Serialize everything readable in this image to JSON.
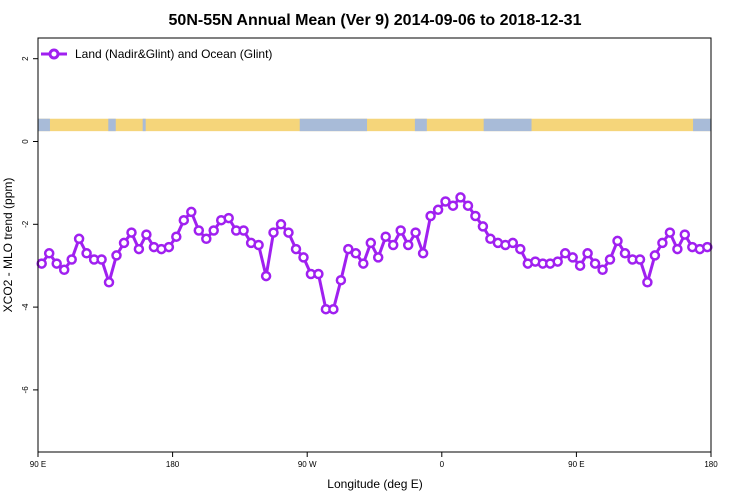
{
  "chart_data": {
    "type": "line",
    "title": "50N-55N Annual Mean (Ver 9)   2014-09-06 to 2018-12-31",
    "xlabel": "Longitude (deg E)",
    "ylabel": "XCO2 - MLO trend (ppm)",
    "xlim": [
      90,
      540
    ],
    "ylim": [
      -7.5,
      2.5
    ],
    "x_ticks": [
      {
        "value": 90,
        "label": "90 E"
      },
      {
        "value": 180,
        "label": "180"
      },
      {
        "value": 270,
        "label": "90 W"
      },
      {
        "value": 360,
        "label": "0"
      },
      {
        "value": 450,
        "label": "90 E"
      },
      {
        "value": 540,
        "label": "180"
      }
    ],
    "y_ticks": [
      {
        "value": 2,
        "label": "2"
      },
      {
        "value": 0,
        "label": "0"
      },
      {
        "value": -2,
        "label": "-2"
      },
      {
        "value": -4,
        "label": "-4"
      },
      {
        "value": -6,
        "label": "-6"
      }
    ],
    "grid": false,
    "legend_position": "top-left",
    "series": [
      {
        "name": "Land (Nadir&Glint) and Ocean (Glint)",
        "color": "#a020f0",
        "x": [
          92.5,
          97.5,
          102.5,
          107.5,
          112.5,
          117.5,
          122.5,
          127.5,
          132.5,
          137.5,
          142.5,
          147.5,
          152.5,
          157.5,
          162.5,
          167.5,
          172.5,
          177.5,
          182.5,
          187.5,
          192.5,
          197.5,
          202.5,
          207.5,
          212.5,
          217.5,
          222.5,
          227.5,
          232.5,
          237.5,
          242.5,
          247.5,
          252.5,
          257.5,
          262.5,
          267.5,
          272.5,
          277.5,
          282.5,
          287.5,
          292.5,
          297.5,
          302.5,
          307.5,
          312.5,
          317.5,
          322.5,
          327.5,
          332.5,
          337.5,
          342.5,
          347.5,
          352.5,
          357.5,
          362.5,
          367.5,
          372.5,
          377.5,
          382.5,
          387.5,
          392.5,
          397.5,
          402.5,
          407.5,
          412.5,
          417.5,
          422.5,
          427.5,
          432.5,
          437.5,
          442.5,
          447.5,
          452.5,
          457.5,
          462.5,
          467.5,
          472.5,
          477.5,
          482.5,
          487.5,
          492.5,
          497.5,
          502.5,
          507.5,
          512.5,
          517.5,
          522.5,
          527.5,
          532.5,
          537.5
        ],
        "values": [
          -2.95,
          -2.7,
          -2.95,
          -3.1,
          -2.85,
          -2.35,
          -2.7,
          -2.85,
          -2.85,
          -3.4,
          -2.75,
          -2.45,
          -2.2,
          -2.6,
          -2.25,
          -2.55,
          -2.6,
          -2.55,
          -2.3,
          -1.9,
          -1.7,
          -2.15,
          -2.35,
          -2.15,
          -1.9,
          -1.85,
          -2.15,
          -2.15,
          -2.45,
          -2.5,
          -3.25,
          -2.2,
          -2.0,
          -2.2,
          -2.6,
          -2.8,
          -3.2,
          -3.2,
          -4.05,
          -4.05,
          -3.35,
          -2.6,
          -2.7,
          -2.95,
          -2.45,
          -2.8,
          -2.3,
          -2.5,
          -2.15,
          -2.5,
          -2.2,
          -2.7,
          -1.8,
          -1.65,
          -1.45,
          -1.55,
          -1.35,
          -1.55,
          -1.8,
          -2.05,
          -2.35,
          -2.45,
          -2.5,
          -2.45,
          -2.6,
          -2.95,
          -2.9,
          -2.95,
          -2.95,
          -2.9,
          -2.7,
          -2.8,
          -3.0,
          -2.7,
          -2.95,
          -3.1,
          -2.85,
          -2.4,
          -2.7,
          -2.85,
          -2.85,
          -3.4,
          -2.75,
          -2.45,
          -2.2,
          -2.6,
          -2.25,
          -2.55,
          -2.6,
          -2.55
        ]
      }
    ],
    "surface_strip": {
      "y_range": [
        0.25,
        0.55
      ],
      "colors": {
        "land": "#f5d57a",
        "ocean": "#a8bbd8"
      },
      "ocean_segments": [
        [
          90,
          98
        ],
        [
          137,
          142
        ],
        [
          160,
          162
        ],
        [
          265,
          310
        ],
        [
          342,
          350
        ],
        [
          388,
          420
        ],
        [
          528,
          540
        ]
      ]
    }
  }
}
